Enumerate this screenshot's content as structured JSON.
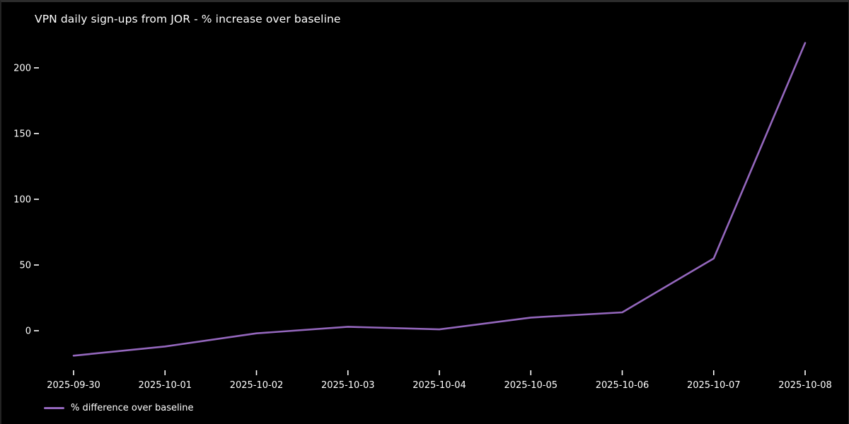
{
  "chart_data": {
    "type": "line",
    "title": "VPN daily sign-ups from JOR - % increase over baseline",
    "x": [
      "2025-09-30",
      "2025-10-01",
      "2025-10-02",
      "2025-10-03",
      "2025-10-04",
      "2025-10-05",
      "2025-10-06",
      "2025-10-07",
      "2025-10-08"
    ],
    "series": [
      {
        "name": "% difference over baseline",
        "color": "#9467bd",
        "values": [
          -19,
          -12,
          -2,
          3,
          1,
          10,
          14,
          55,
          219
        ]
      }
    ],
    "y_ticks": [
      0,
      50,
      100,
      150,
      200
    ],
    "ylim": [
      -30,
      235
    ],
    "xlabel": "",
    "ylabel": "",
    "grid": false,
    "legend_position": "lower-left",
    "background_color": "#000000",
    "text_color": "#ffffff"
  }
}
